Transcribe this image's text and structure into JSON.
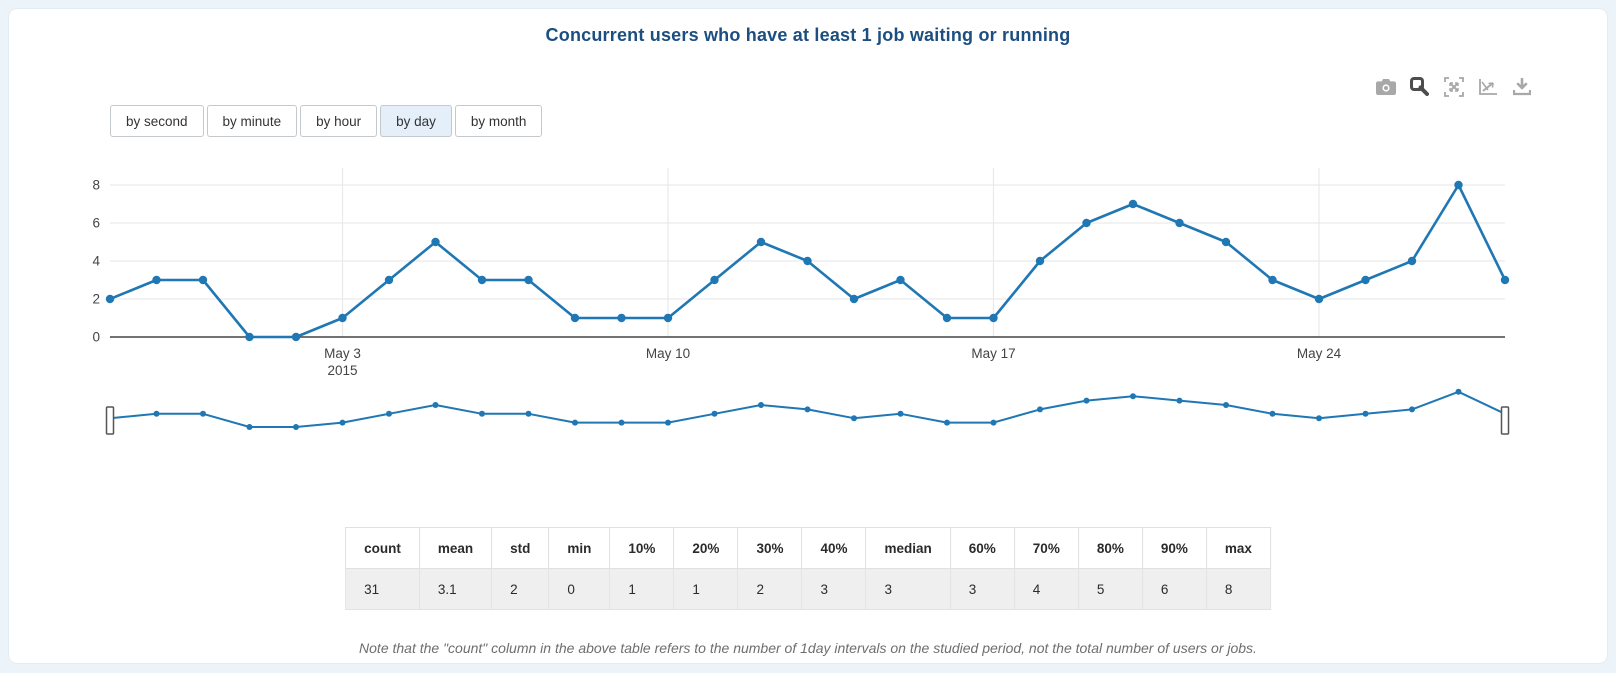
{
  "page": {
    "frame_color": "#ecf4fa",
    "card_color": "#ffffff"
  },
  "title": {
    "text": "Concurrent users who have at least 1 job waiting or running",
    "color": "#1c4e80"
  },
  "modebar": {
    "icon_color": "#a8a8a8",
    "active_icon_color": "#4d4d4d",
    "icons": [
      {
        "name": "camera-icon",
        "active": false
      },
      {
        "name": "zoom-icon",
        "active": true
      },
      {
        "name": "autoscale-icon",
        "active": false
      },
      {
        "name": "reset-axes-icon",
        "active": false
      },
      {
        "name": "download-icon",
        "active": false
      }
    ]
  },
  "range_selector": {
    "active_bg": "#e4eff9",
    "buttons": [
      {
        "label": "by second",
        "active": false
      },
      {
        "label": "by minute",
        "active": false
      },
      {
        "label": "by hour",
        "active": false
      },
      {
        "label": "by day",
        "active": true
      },
      {
        "label": "by month",
        "active": false
      }
    ]
  },
  "chart_data": {
    "type": "line",
    "title": "Concurrent users who have at least 1 job waiting or running",
    "line_color": "#1f77b4",
    "grid": true,
    "rangeslider": true,
    "ylim": [
      0,
      8.4
    ],
    "y_ticks": [
      0,
      2,
      4,
      6,
      8
    ],
    "x_ticks": [
      {
        "label": "May 3",
        "sublabel": "2015",
        "index": 5
      },
      {
        "label": "May 10",
        "sublabel": "",
        "index": 12
      },
      {
        "label": "May 17",
        "sublabel": "",
        "index": 19
      },
      {
        "label": "May 24",
        "sublabel": "",
        "index": 26
      }
    ],
    "series": [
      {
        "name": "concurrent-users-by-day",
        "values": [
          2,
          3,
          3,
          0,
          0,
          1,
          3,
          5,
          3,
          3,
          1,
          1,
          1,
          3,
          5,
          4,
          2,
          3,
          1,
          1,
          4,
          6,
          7,
          6,
          5,
          3,
          2,
          3,
          4,
          8,
          3
        ]
      }
    ]
  },
  "stats_table": {
    "headers": [
      "count",
      "mean",
      "std",
      "min",
      "10%",
      "20%",
      "30%",
      "40%",
      "median",
      "60%",
      "70%",
      "80%",
      "90%",
      "max"
    ],
    "values": [
      "31",
      "3.1",
      "2",
      "0",
      "1",
      "1",
      "2",
      "3",
      "3",
      "3",
      "4",
      "5",
      "6",
      "8"
    ]
  },
  "footnote": {
    "text": "Note that the \"count\" column in the above table refers to the number of 1day intervals on the studied period, not the total number of users or jobs."
  }
}
